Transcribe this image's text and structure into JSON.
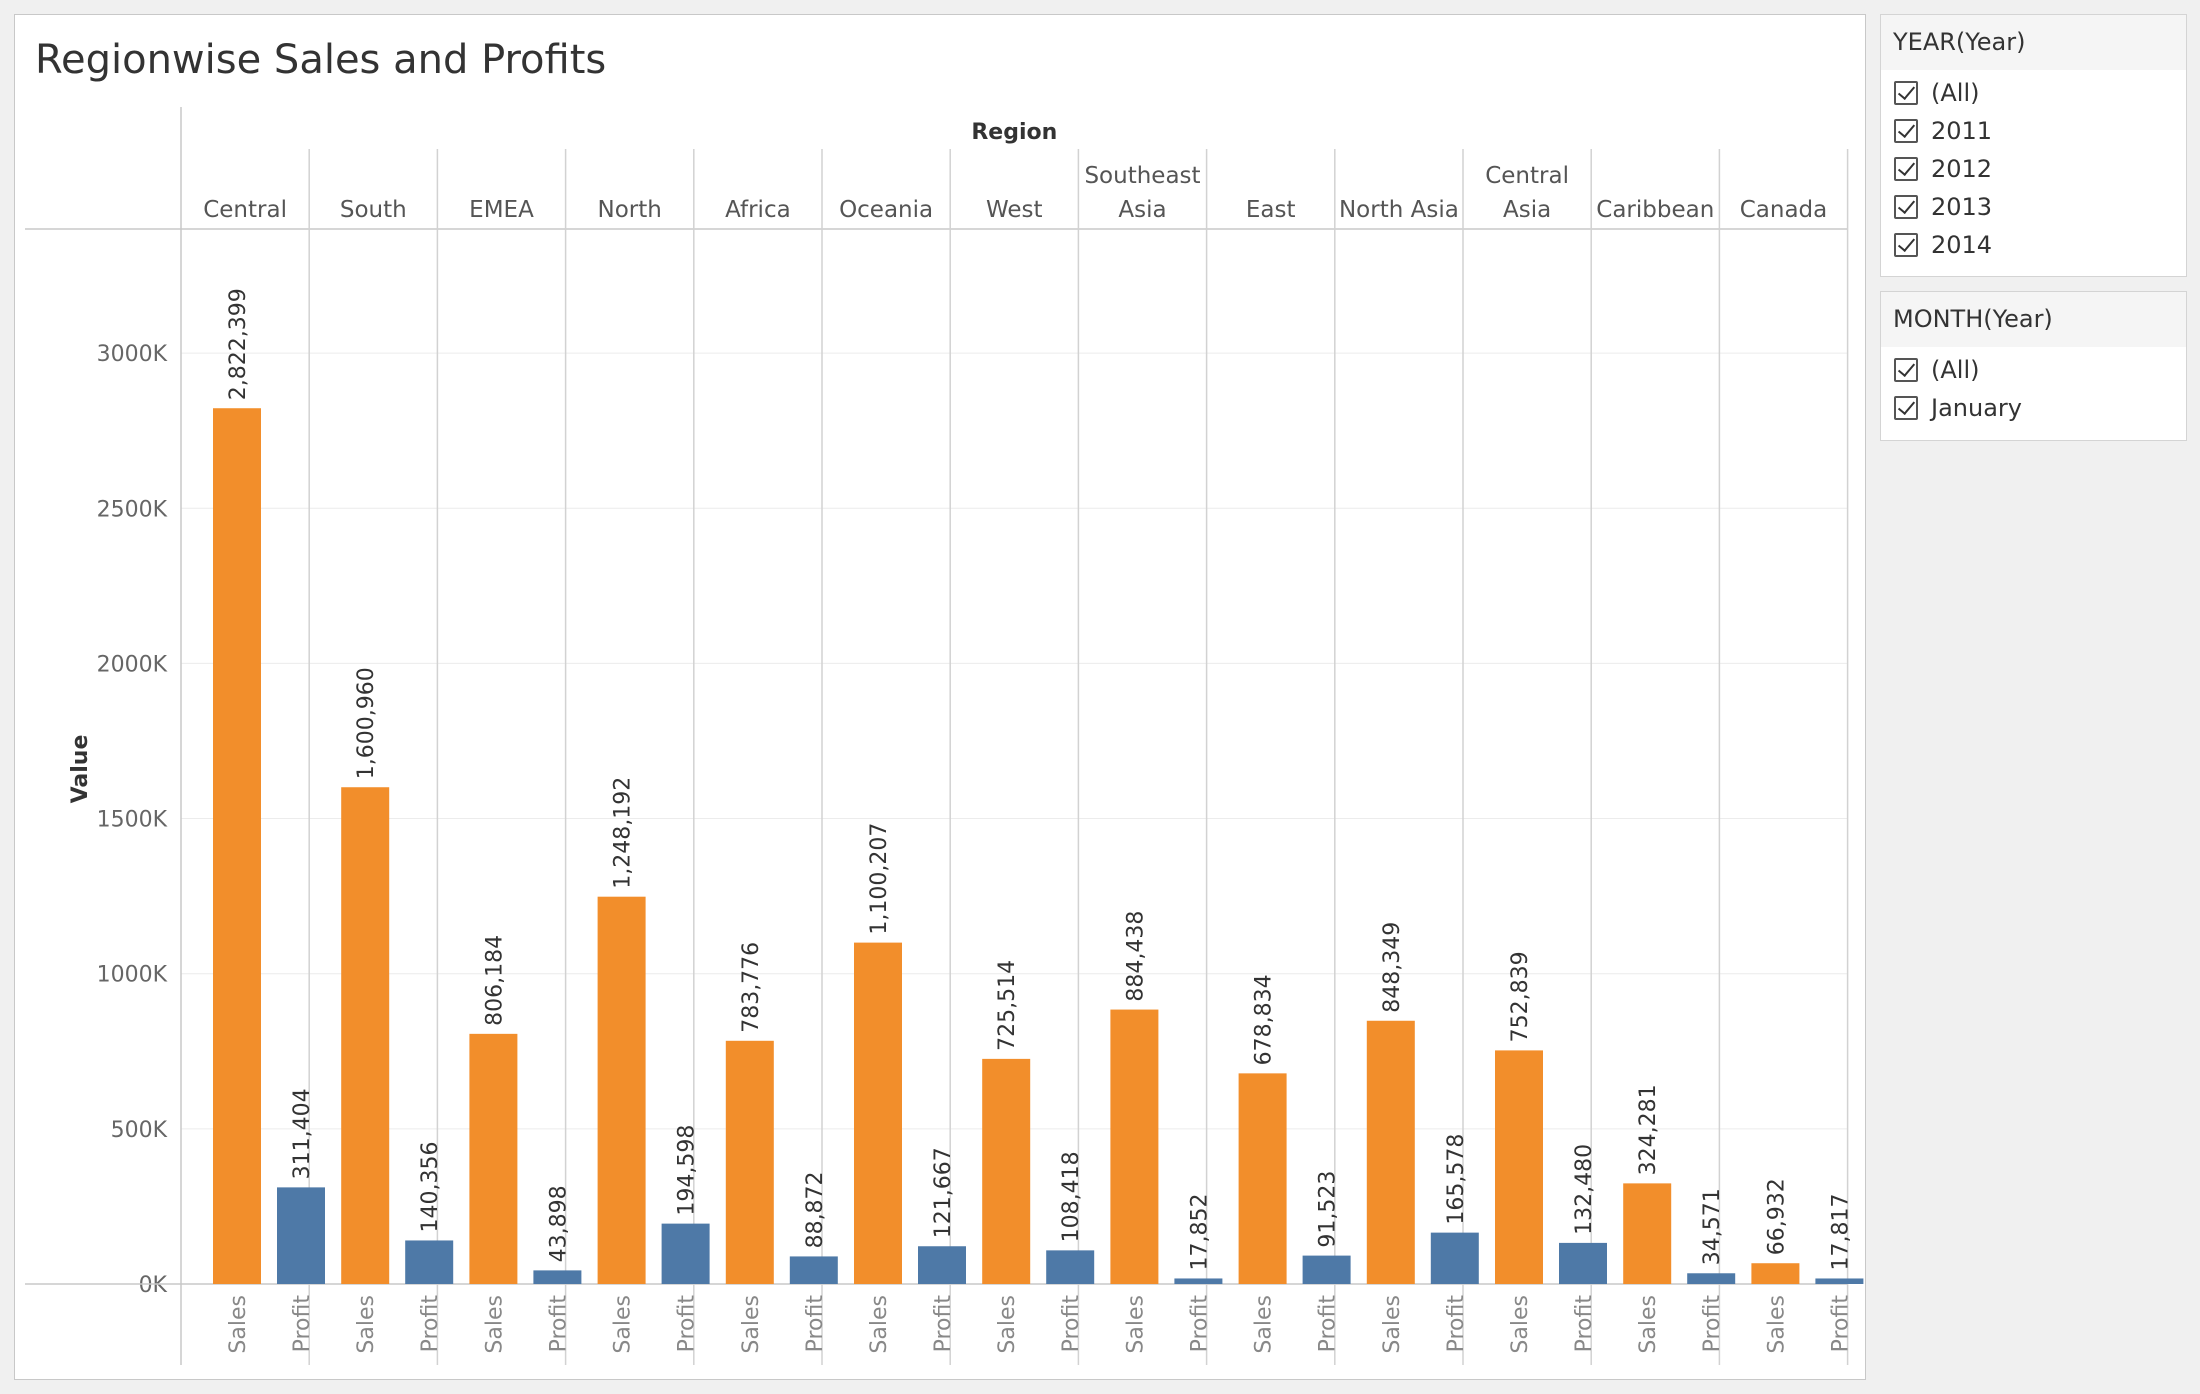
{
  "chart_data": {
    "type": "bar",
    "title": "Regionwise Sales and Profits",
    "column_header": "Region",
    "ylabel": "Value",
    "ylim": [
      0,
      3400000
    ],
    "yticks": [
      0,
      500000,
      1000000,
      1500000,
      2000000,
      2500000,
      3000000
    ],
    "ytick_labels": [
      "0K",
      "500K",
      "1000K",
      "1500K",
      "2000K",
      "2500K",
      "3000K"
    ],
    "measures": [
      "Sales",
      "Profit"
    ],
    "colors": {
      "Sales": "#f28e2b",
      "Profit": "#4e79a7"
    },
    "regions": [
      {
        "name": [
          "Central"
        ],
        "sales": 2822399,
        "profit": 311404,
        "sales_label": "2,822,399",
        "profit_label": "311,404"
      },
      {
        "name": [
          "South"
        ],
        "sales": 1600960,
        "profit": 140356,
        "sales_label": "1,600,960",
        "profit_label": "140,356"
      },
      {
        "name": [
          "EMEA"
        ],
        "sales": 806184,
        "profit": 43898,
        "sales_label": "806,184",
        "profit_label": "43,898"
      },
      {
        "name": [
          "North"
        ],
        "sales": 1248192,
        "profit": 194598,
        "sales_label": "1,248,192",
        "profit_label": "194,598"
      },
      {
        "name": [
          "Africa"
        ],
        "sales": 783776,
        "profit": 88872,
        "sales_label": "783,776",
        "profit_label": "88,872"
      },
      {
        "name": [
          "Oceania"
        ],
        "sales": 1100207,
        "profit": 121667,
        "sales_label": "1,100,207",
        "profit_label": "121,667"
      },
      {
        "name": [
          "West"
        ],
        "sales": 725514,
        "profit": 108418,
        "sales_label": "725,514",
        "profit_label": "108,418"
      },
      {
        "name": [
          "Southeast",
          "Asia"
        ],
        "sales": 884438,
        "profit": 17852,
        "sales_label": "884,438",
        "profit_label": "17,852"
      },
      {
        "name": [
          "East"
        ],
        "sales": 678834,
        "profit": 91523,
        "sales_label": "678,834",
        "profit_label": "91,523"
      },
      {
        "name": [
          "North Asia"
        ],
        "sales": 848349,
        "profit": 165578,
        "sales_label": "848,349",
        "profit_label": "165,578"
      },
      {
        "name": [
          "Central",
          "Asia"
        ],
        "sales": 752839,
        "profit": 132480,
        "sales_label": "752,839",
        "profit_label": "132,480"
      },
      {
        "name": [
          "Caribbean"
        ],
        "sales": 324281,
        "profit": 34571,
        "sales_label": "324,281",
        "profit_label": "34,571"
      },
      {
        "name": [
          "Canada"
        ],
        "sales": 66932,
        "profit": 17817,
        "sales_label": "66,932",
        "profit_label": "17,817"
      }
    ]
  },
  "filters": {
    "year": {
      "title": "YEAR(Year)",
      "options": [
        {
          "label": "(All)",
          "checked": true
        },
        {
          "label": "2011",
          "checked": true
        },
        {
          "label": "2012",
          "checked": true
        },
        {
          "label": "2013",
          "checked": true
        },
        {
          "label": "2014",
          "checked": true
        }
      ]
    },
    "month": {
      "title": "MONTH(Year)",
      "options": [
        {
          "label": "(All)",
          "checked": true
        },
        {
          "label": "January",
          "checked": true
        }
      ]
    }
  }
}
